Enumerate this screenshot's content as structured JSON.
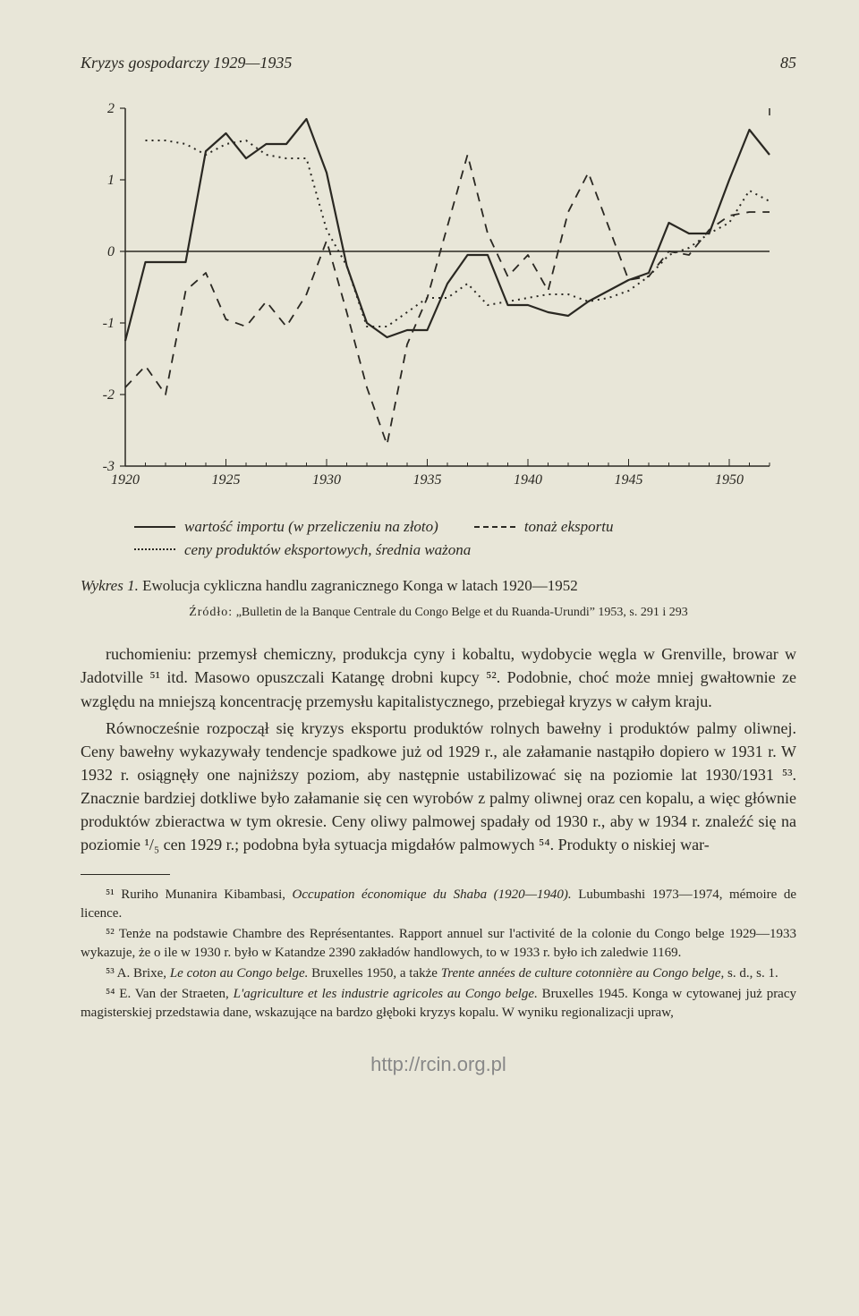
{
  "header": {
    "running_title": "Kryzys gospodarczy 1929—1935",
    "page_number": "85"
  },
  "chart": {
    "type": "line",
    "xlim": [
      1920,
      1952
    ],
    "ylim": [
      -3,
      2
    ],
    "xticks": [
      1920,
      1925,
      1930,
      1935,
      1940,
      1945,
      1950
    ],
    "yticks": [
      -3,
      -2,
      -1,
      0,
      1,
      2
    ],
    "background_color": "#e8e6d8",
    "axis_color": "#2a2822",
    "zero_line": true,
    "axis_label_fontsize": 16,
    "series": [
      {
        "name": "wartość importu (w przeliczeniu na złoto)",
        "style": "solid",
        "color": "#2a2822",
        "linewidth": 2.2,
        "data": [
          [
            1920,
            -1.25
          ],
          [
            1921,
            -0.15
          ],
          [
            1922,
            -0.15
          ],
          [
            1923,
            -0.15
          ],
          [
            1924,
            1.4
          ],
          [
            1925,
            1.65
          ],
          [
            1926,
            1.3
          ],
          [
            1927,
            1.5
          ],
          [
            1928,
            1.5
          ],
          [
            1929,
            1.85
          ],
          [
            1930,
            1.1
          ],
          [
            1931,
            -0.2
          ],
          [
            1932,
            -1.0
          ],
          [
            1933,
            -1.2
          ],
          [
            1934,
            -1.1
          ],
          [
            1935,
            -1.1
          ],
          [
            1936,
            -0.45
          ],
          [
            1937,
            -0.05
          ],
          [
            1938,
            -0.05
          ],
          [
            1939,
            -0.75
          ],
          [
            1940,
            -0.75
          ],
          [
            1941,
            -0.85
          ],
          [
            1942,
            -0.9
          ],
          [
            1943,
            -0.7
          ],
          [
            1944,
            -0.55
          ],
          [
            1945,
            -0.4
          ],
          [
            1946,
            -0.3
          ],
          [
            1947,
            0.4
          ],
          [
            1948,
            0.25
          ],
          [
            1949,
            0.25
          ],
          [
            1950,
            1.0
          ],
          [
            1951,
            1.7
          ],
          [
            1952,
            1.35
          ]
        ]
      },
      {
        "name": "tonaż eksportu",
        "style": "dashed",
        "color": "#2a2822",
        "linewidth": 1.8,
        "data": [
          [
            1920,
            -1.9
          ],
          [
            1921,
            -1.6
          ],
          [
            1922,
            -2.0
          ],
          [
            1923,
            -0.55
          ],
          [
            1924,
            -0.3
          ],
          [
            1925,
            -0.95
          ],
          [
            1926,
            -1.05
          ],
          [
            1927,
            -0.7
          ],
          [
            1928,
            -1.05
          ],
          [
            1929,
            -0.6
          ],
          [
            1930,
            0.15
          ],
          [
            1931,
            -0.85
          ],
          [
            1932,
            -1.9
          ],
          [
            1933,
            -2.7
          ],
          [
            1934,
            -1.3
          ],
          [
            1935,
            -0.65
          ],
          [
            1936,
            0.35
          ],
          [
            1937,
            1.35
          ],
          [
            1938,
            0.25
          ],
          [
            1939,
            -0.35
          ],
          [
            1940,
            -0.05
          ],
          [
            1941,
            -0.55
          ],
          [
            1942,
            0.55
          ],
          [
            1943,
            1.1
          ],
          [
            1944,
            0.35
          ],
          [
            1945,
            -0.4
          ],
          [
            1946,
            -0.35
          ],
          [
            1947,
            0.0
          ],
          [
            1948,
            -0.05
          ],
          [
            1949,
            0.3
          ],
          [
            1950,
            0.5
          ],
          [
            1951,
            0.55
          ],
          [
            1952,
            0.55
          ]
        ]
      },
      {
        "name": "ceny produktów eksportowych, średnia ważona",
        "style": "dotted",
        "color": "#2a2822",
        "linewidth": 2.0,
        "data": [
          [
            1921,
            1.55
          ],
          [
            1922,
            1.55
          ],
          [
            1923,
            1.5
          ],
          [
            1924,
            1.35
          ],
          [
            1925,
            1.5
          ],
          [
            1926,
            1.55
          ],
          [
            1927,
            1.35
          ],
          [
            1928,
            1.3
          ],
          [
            1929,
            1.3
          ],
          [
            1930,
            0.3
          ],
          [
            1931,
            -0.2
          ],
          [
            1932,
            -1.05
          ],
          [
            1933,
            -1.05
          ],
          [
            1934,
            -0.85
          ],
          [
            1935,
            -0.65
          ],
          [
            1936,
            -0.65
          ],
          [
            1937,
            -0.45
          ],
          [
            1938,
            -0.75
          ],
          [
            1939,
            -0.7
          ],
          [
            1940,
            -0.65
          ],
          [
            1941,
            -0.6
          ],
          [
            1942,
            -0.6
          ],
          [
            1943,
            -0.7
          ],
          [
            1944,
            -0.65
          ],
          [
            1945,
            -0.55
          ],
          [
            1946,
            -0.35
          ],
          [
            1947,
            -0.05
          ],
          [
            1948,
            0.05
          ],
          [
            1949,
            0.25
          ],
          [
            1950,
            0.4
          ],
          [
            1951,
            0.85
          ],
          [
            1952,
            0.7
          ]
        ]
      }
    ],
    "legend": {
      "solid": "wartość importu (w przeliczeniu na złoto)",
      "dashed": "tonaż eksportu",
      "dotted": "ceny produktów eksportowych, średnia ważona"
    }
  },
  "caption": {
    "label": "Wykres 1.",
    "text": "Ewolucja cykliczna handlu zagranicznego Konga w latach 1920—1952"
  },
  "source": {
    "label": "Źródło:",
    "text": "„Bulletin de la Banque Centrale du Congo Belge et du Ruanda-Urundi” 1953, s. 291 i 293"
  },
  "body": {
    "p1": "ruchomieniu: przemysł chemiczny, produkcja cyny i kobaltu, wydobycie węgla w Grenville, browar w Jadotville ⁵¹ itd. Masowo opuszczali Katangę drobni kupcy ⁵². Podobnie, choć może mniej gwałtownie ze względu na mniejszą koncentrację przemysłu kapitalistycznego, przebiegał kryzys w całym kraju.",
    "p2": "Równocześnie rozpoczął się kryzys eksportu produktów rolnych bawełny i produktów palmy oliwnej. Ceny bawełny wykazywały tendencje spadkowe już od 1929 r., ale załamanie nastąpiło dopiero w 1931 r. W 1932 r. osiągnęły one najniższy poziom, aby następnie ustabilizować się na poziomie lat 1930/1931 ⁵³. Znacznie bardziej dotkliwe było załamanie się cen wyrobów z palmy oliwnej oraz cen kopalu, a więc głównie produktów zbieractwa w tym okresie. Ceny oliwy palmowej spadały od 1930 r., aby w 1934 r. znaleźć się na poziomie ¹/₅ cen 1929 r.; podobna była sytuacja migdałów palmowych ⁵⁴. Produkty o niskiej war-"
  },
  "footnotes": {
    "n51a": "⁵¹ Ruriho Munanira Kibambasi, ",
    "n51b": "Occupation économique du Shaba (1920—1940).",
    "n51c": " Lubumbashi 1973—1974, mémoire de licence.",
    "n52": "⁵² Tenże na podstawie Chambre des Représentantes. Rapport annuel sur l'activité de la colonie du Congo belge 1929—1933 wykazuje, że o ile w 1930 r. było w Katandze 2390 zakładów handlowych, to w 1933 r. było ich zaledwie 1169.",
    "n53a": "⁵³ A. Brixe, ",
    "n53b": "Le coton au Congo belge.",
    "n53c": " Bruxelles 1950, a także ",
    "n53d": "Trente années de culture cotonnière au Congo belge,",
    "n53e": " s. d., s. 1.",
    "n54a": "⁵⁴ E. Van der Straeten, ",
    "n54b": "L'agriculture et les industrie agricoles au Congo belge.",
    "n54c": " Bruxelles 1945. Konga w cytowanej już pracy magisterskiej przedstawia dane, wskazujące na bardzo głęboki kryzys kopalu. W wyniku regionalizacji upraw,"
  },
  "footer_url": "http://rcin.org.pl"
}
